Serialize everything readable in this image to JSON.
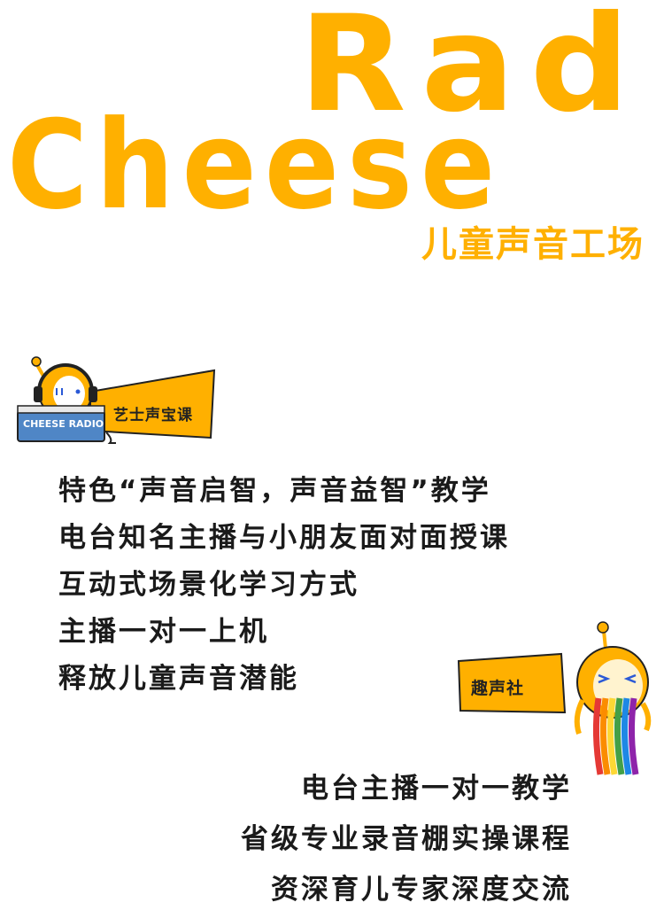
{
  "brand": {
    "title_line1": "Rad",
    "title_line2": "Cheese",
    "subtitle": "儿童声音工场",
    "accent_color": "#ffb000"
  },
  "course_badge": {
    "logo_text": "CHEESE RADIO",
    "label": "艺士声宝课"
  },
  "course_features": [
    "特色“声音启智，声音益智”教学",
    "电台知名主播与小朋友面对面授课",
    "互动式场景化学习方式",
    "主播一对一上机",
    "释放儿童声音潜能"
  ],
  "club_badge": {
    "label": "趣声社"
  },
  "club_features": [
    "电台主播一对一教学",
    "省级专业录音棚实操课程",
    "资深育儿专家深度交流"
  ]
}
